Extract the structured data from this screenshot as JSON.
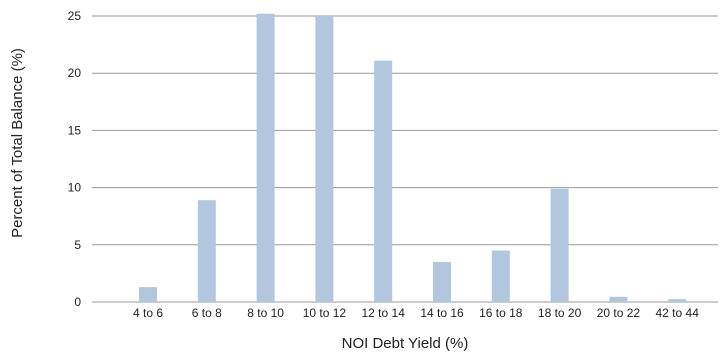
{
  "chart_data": {
    "type": "bar",
    "title": "",
    "xlabel": "NOI Debt Yield (%)",
    "ylabel": "Percent of Total Balance (%)",
    "categories": [
      "4 to 6",
      "6 to 8",
      "8 to 10",
      "10 to 12",
      "12 to 14",
      "14 to 16",
      "16 to 18",
      "18 to 20",
      "20 to 22",
      "42 to 44"
    ],
    "values": [
      1.3,
      8.9,
      25.2,
      25.0,
      21.1,
      3.5,
      4.5,
      9.9,
      0.45,
      0.25
    ],
    "ylim": [
      0,
      25
    ],
    "yticks": [
      "0",
      "5",
      "10",
      "15",
      "20",
      "25"
    ],
    "grid": true,
    "colors": {
      "bar": "#b2c6de",
      "grid": "#999999",
      "text": "#222222"
    }
  }
}
